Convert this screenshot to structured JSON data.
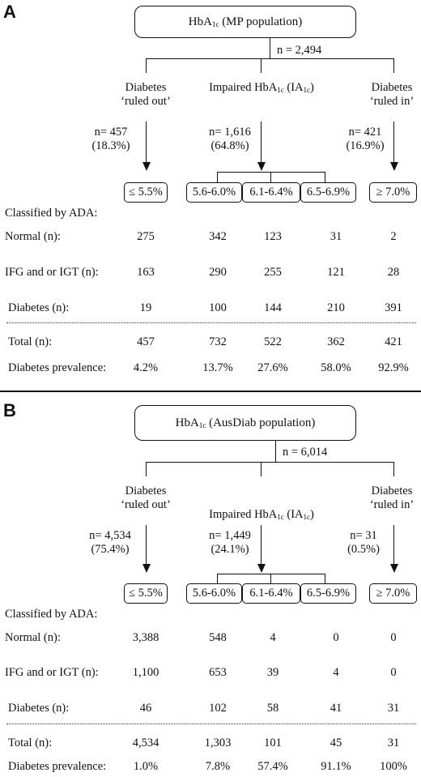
{
  "panels": [
    {
      "letter": "A",
      "title_main": "HbA",
      "title_sub": "1c",
      "title_rest": " (MP population)",
      "n_total": "n = 2,494",
      "groups": {
        "left_label_1": "Diabetes",
        "left_label_2": "‘ruled out’",
        "mid_label_main": "Impaired HbA",
        "mid_label_sub": "1c",
        "mid_label_mid": " (IA",
        "mid_label_sub2": "1c",
        "mid_label_end": ")",
        "right_label_1": "Diabetes",
        "right_label_2": "‘ruled in’",
        "left_n": "n= 457",
        "left_pct": "(18.3%)",
        "mid_n": "n= 1,616",
        "mid_pct": "(64.8%)",
        "right_n": "n= 421",
        "right_pct": "(16.9%)"
      },
      "categories": [
        "≤ 5.5%",
        "5.6-6.0%",
        "6.1-6.4%",
        "6.5-6.9%",
        "≥ 7.0%"
      ],
      "classified_by": "Classified by ADA:",
      "rows": [
        {
          "label": "Normal (n):",
          "values": [
            "275",
            "342",
            "123",
            "31",
            "2"
          ]
        },
        {
          "label": "IFG and or IGT (n):",
          "values": [
            "163",
            "290",
            "255",
            "121",
            "28"
          ]
        },
        {
          "label": "Diabetes (n):",
          "values": [
            "19",
            "100",
            "144",
            "210",
            "391"
          ]
        }
      ],
      "totals": {
        "label": "Total (n):",
        "values": [
          "457",
          "732",
          "522",
          "362",
          "421"
        ]
      },
      "prevalence": {
        "label": "Diabetes prevalence:",
        "values": [
          "4.2%",
          "13.7%",
          "27.6%",
          "58.0%",
          "92.9%"
        ]
      }
    },
    {
      "letter": "B",
      "title_main": "HbA",
      "title_sub": "1c",
      "title_rest": " (AusDiab population)",
      "n_total": "n = 6,014",
      "groups": {
        "left_label_1": "Diabetes",
        "left_label_2": "‘ruled out’",
        "mid_label_main": "Impaired HbA",
        "mid_label_sub": "1c",
        "mid_label_mid": " (IA",
        "mid_label_sub2": "1c",
        "mid_label_end": ")",
        "right_label_1": "Diabetes",
        "right_label_2": "‘ruled in’",
        "left_n": "n= 4,534",
        "left_pct": "(75.4%)",
        "mid_n": "n= 1,449",
        "mid_pct": "(24.1%)",
        "right_n": "n= 31",
        "right_pct": "(0.5%)"
      },
      "categories": [
        "≤ 5.5%",
        "5.6-6.0%",
        "6.1-6.4%",
        "6.5-6.9%",
        "≥ 7.0%"
      ],
      "classified_by": "Classified by ADA:",
      "rows": [
        {
          "label": "Normal (n):",
          "values": [
            "3,388",
            "548",
            "4",
            "0",
            "0"
          ]
        },
        {
          "label": "IFG and or IGT (n):",
          "values": [
            "1,100",
            "653",
            "39",
            "4",
            "0"
          ]
        },
        {
          "label": "Diabetes (n):",
          "values": [
            "46",
            "102",
            "58",
            "41",
            "31"
          ]
        }
      ],
      "totals": {
        "label": "Total (n):",
        "values": [
          "4,534",
          "1,303",
          "101",
          "45",
          "31"
        ]
      },
      "prevalence": {
        "label": "Diabetes prevalence:",
        "values": [
          "1.0%",
          "7.8%",
          "57.4%",
          "91.1%",
          "100%"
        ]
      }
    }
  ]
}
